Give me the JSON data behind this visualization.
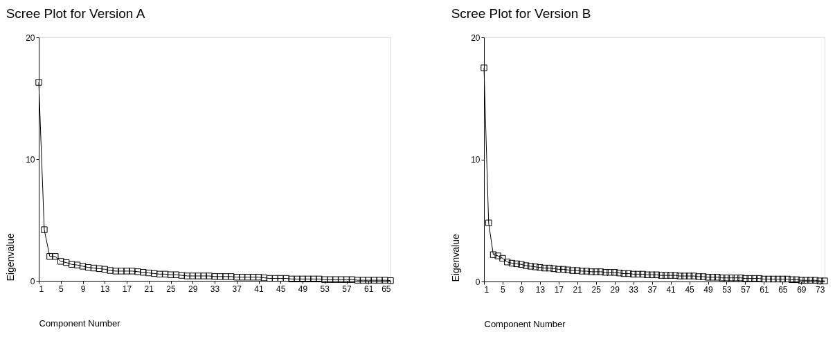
{
  "chart_data": [
    {
      "type": "line",
      "title": "Scree Plot for Version A",
      "xlabel": "Component Number",
      "ylabel": "Eigenvalue",
      "marker": "square",
      "grid": false,
      "x": [
        1,
        2,
        3,
        4,
        5,
        6,
        7,
        8,
        9,
        10,
        11,
        12,
        13,
        14,
        15,
        16,
        17,
        18,
        19,
        20,
        21,
        22,
        23,
        24,
        25,
        26,
        27,
        28,
        29,
        30,
        31,
        32,
        33,
        34,
        35,
        36,
        37,
        38,
        39,
        40,
        41,
        42,
        43,
        44,
        45,
        46,
        47,
        48,
        49,
        50,
        51,
        52,
        53,
        54,
        55,
        56,
        57,
        58,
        59,
        60,
        61,
        62,
        63,
        64,
        65
      ],
      "series": [
        {
          "color": "#000000",
          "values": [
            16.3,
            4.2,
            2.0,
            2.0,
            1.6,
            1.5,
            1.35,
            1.3,
            1.2,
            1.1,
            1.05,
            1.0,
            0.95,
            0.85,
            0.8,
            0.8,
            0.8,
            0.8,
            0.75,
            0.7,
            0.65,
            0.6,
            0.55,
            0.55,
            0.5,
            0.5,
            0.45,
            0.4,
            0.4,
            0.4,
            0.4,
            0.4,
            0.35,
            0.35,
            0.35,
            0.35,
            0.3,
            0.3,
            0.3,
            0.3,
            0.3,
            0.25,
            0.2,
            0.2,
            0.2,
            0.2,
            0.15,
            0.15,
            0.15,
            0.15,
            0.15,
            0.15,
            0.1,
            0.1,
            0.1,
            0.1,
            0.1,
            0.1,
            0.05,
            0.05,
            0.05,
            0.05,
            0.05,
            0.05,
            0.02
          ]
        }
      ],
      "xlim": [
        1,
        65
      ],
      "xticks": [
        1,
        5,
        9,
        13,
        17,
        21,
        25,
        29,
        33,
        37,
        41,
        45,
        49,
        53,
        57,
        61,
        65
      ],
      "ylim": [
        0,
        20
      ],
      "yticks": [
        0,
        10,
        20
      ]
    },
    {
      "type": "line",
      "title": "Scree Plot for Version B",
      "xlabel": "Component Number",
      "ylabel": "Eigenvalue",
      "marker": "square",
      "grid": false,
      "x": [
        1,
        2,
        3,
        4,
        5,
        6,
        7,
        8,
        9,
        10,
        11,
        12,
        13,
        14,
        15,
        16,
        17,
        18,
        19,
        20,
        21,
        22,
        23,
        24,
        25,
        26,
        27,
        28,
        29,
        30,
        31,
        32,
        33,
        34,
        35,
        36,
        37,
        38,
        39,
        40,
        41,
        42,
        43,
        44,
        45,
        46,
        47,
        48,
        49,
        50,
        51,
        52,
        53,
        54,
        55,
        56,
        57,
        58,
        59,
        60,
        61,
        62,
        63,
        64,
        65,
        66,
        67,
        68,
        69,
        70,
        71,
        72,
        73,
        74
      ],
      "series": [
        {
          "color": "#000000",
          "values": [
            17.5,
            4.8,
            2.2,
            2.1,
            1.9,
            1.6,
            1.5,
            1.45,
            1.4,
            1.3,
            1.25,
            1.2,
            1.15,
            1.1,
            1.1,
            1.05,
            1.0,
            1.0,
            0.95,
            0.9,
            0.9,
            0.85,
            0.85,
            0.8,
            0.8,
            0.8,
            0.75,
            0.75,
            0.75,
            0.7,
            0.65,
            0.65,
            0.6,
            0.6,
            0.6,
            0.55,
            0.55,
            0.55,
            0.5,
            0.5,
            0.5,
            0.5,
            0.45,
            0.45,
            0.45,
            0.45,
            0.4,
            0.4,
            0.35,
            0.35,
            0.35,
            0.3,
            0.3,
            0.3,
            0.3,
            0.3,
            0.25,
            0.25,
            0.25,
            0.25,
            0.2,
            0.2,
            0.2,
            0.2,
            0.2,
            0.2,
            0.15,
            0.15,
            0.1,
            0.1,
            0.1,
            0.1,
            0.05,
            0.05
          ]
        }
      ],
      "xlim": [
        1,
        74
      ],
      "xticks": [
        1,
        5,
        9,
        13,
        17,
        21,
        25,
        29,
        33,
        37,
        41,
        45,
        49,
        53,
        57,
        61,
        65,
        69,
        73
      ],
      "ylim": [
        0,
        20
      ],
      "yticks": [
        0,
        10,
        20
      ]
    }
  ]
}
